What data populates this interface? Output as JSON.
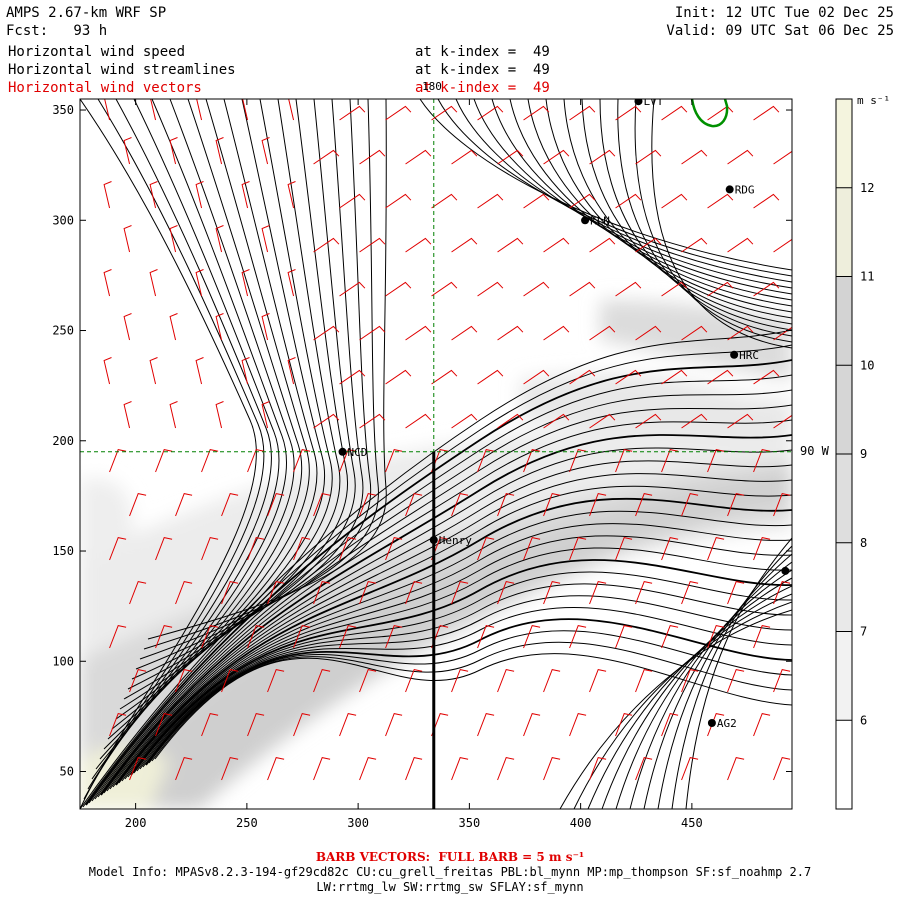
{
  "header": {
    "model_title": "AMPS 2.67-km WRF SP",
    "forecast": "Fcst:   93 h",
    "init": "Init: 12 UTC Tue 02 Dec 25",
    "valid": "Valid: 09 UTC Sat 06 Dec 25",
    "fields": [
      {
        "name": "Horizontal wind speed",
        "level": "at k-index =  49",
        "color": "#000000"
      },
      {
        "name": "Horizontal wind streamlines",
        "level": "at k-index =  49",
        "color": "#000000"
      },
      {
        "name": "Horizontal wind vectors",
        "level": "at k-index =  49",
        "color": "#e00000"
      }
    ]
  },
  "map": {
    "x_ticks": [
      200,
      250,
      300,
      350,
      400,
      450
    ],
    "y_ticks": [
      50,
      100,
      150,
      200,
      250,
      300,
      350
    ],
    "x_range": [
      175,
      495
    ],
    "y_range": [
      33,
      355
    ],
    "meridian_label": "180",
    "parallel_label": "90 W",
    "meridian_x": 334,
    "parallel_y": 195,
    "section_line": {
      "x": 334,
      "y_from": 33,
      "y_to": 195
    },
    "stations": [
      {
        "name": "NCD",
        "x": 293,
        "y": 195
      },
      {
        "name": "Henry",
        "x": 334,
        "y": 155
      },
      {
        "name": "KLN",
        "x": 402,
        "y": 300
      },
      {
        "name": "RDG",
        "x": 467,
        "y": 314
      },
      {
        "name": "HRC",
        "x": 469,
        "y": 239
      },
      {
        "name": "LVT",
        "x": 426,
        "y": 354
      },
      {
        "name": "AG2",
        "x": 459,
        "y": 72
      },
      {
        "name": "",
        "x": 492,
        "y": 141
      }
    ]
  },
  "colorbar": {
    "unit": "m s⁻¹",
    "levels": [
      6,
      7,
      8,
      9,
      10,
      11,
      12
    ],
    "bins": [
      {
        "from": 5,
        "to": 6,
        "color": "#ffffff"
      },
      {
        "from": 6,
        "to": 7,
        "color": "#f2f2f2"
      },
      {
        "from": 7,
        "to": 8,
        "color": "#e9e9e9"
      },
      {
        "from": 8,
        "to": 9,
        "color": "#dedede"
      },
      {
        "from": 9,
        "to": 10,
        "color": "#d6d6d6"
      },
      {
        "from": 10,
        "to": 11,
        "color": "#d3d3d3"
      },
      {
        "from": 11,
        "to": 12,
        "color": "#eeeedc"
      },
      {
        "from": 12,
        "to": 13,
        "color": "#f4f4de"
      }
    ]
  },
  "footer": {
    "barb_note": "BARB VECTORS:  FULL BARB = 5 m s⁻¹",
    "model_info": "Model Info: MPASv8.2.3-194-gf29cd82c CU:cu_grell_freitas PBL:bl_mynn MP:mp_thompson SF:sf_noahmp 2.7",
    "physics": "LW:rrtmg_lw SW:rrtmg_sw SFLAY:sf_mynn"
  }
}
